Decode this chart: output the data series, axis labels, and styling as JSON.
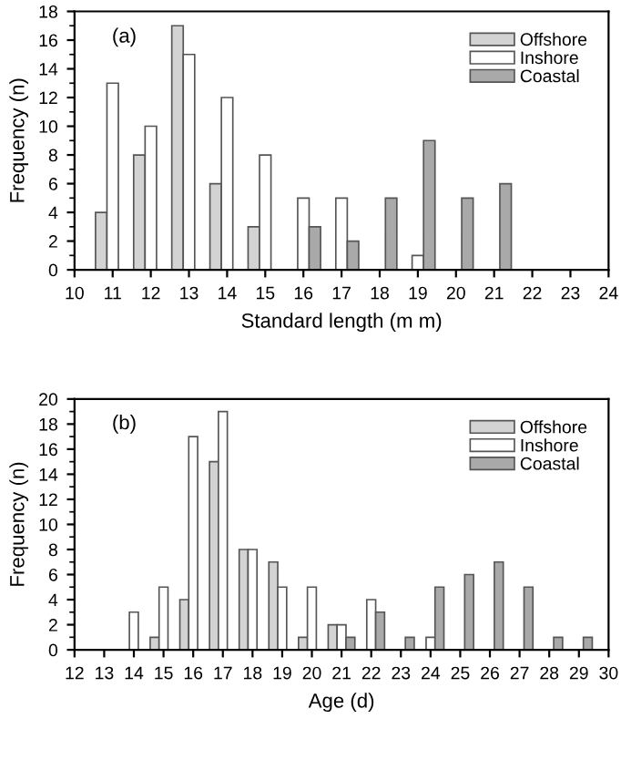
{
  "chart_data": [
    {
      "type": "bar",
      "xlabel": "Standard length (m m)",
      "ylabel": "Frequency (n)",
      "annotations": [
        "(a)"
      ],
      "legend": "top right",
      "grid": false,
      "xlim": [
        10,
        24
      ],
      "xticks": [
        10,
        11,
        12,
        13,
        14,
        15,
        16,
        17,
        18,
        19,
        20,
        21,
        22,
        23,
        24
      ],
      "ylim": [
        0,
        18
      ],
      "yticks": [
        0,
        2,
        4,
        6,
        8,
        10,
        12,
        14,
        16,
        18
      ],
      "x": [
        11,
        12,
        13,
        14,
        15,
        16,
        17,
        18,
        19,
        20,
        21
      ],
      "series": [
        {
          "name": "Offshore",
          "color": "#d3d3d3",
          "values": [
            4,
            8,
            17,
            6,
            3,
            null,
            null,
            null,
            null,
            null,
            null
          ]
        },
        {
          "name": "Inshore",
          "color": "#ffffff",
          "values": [
            13,
            10,
            15,
            12,
            8,
            5,
            5,
            null,
            1,
            null,
            null
          ]
        },
        {
          "name": "Coastal",
          "color": "#a9a9a9",
          "values": [
            null,
            null,
            null,
            null,
            null,
            3,
            2,
            5,
            9,
            5,
            6
          ]
        }
      ]
    },
    {
      "type": "bar",
      "xlabel": "Age (d)",
      "ylabel": "Frequency (n)",
      "annotations": [
        "(b)"
      ],
      "legend": "top right",
      "grid": false,
      "xlim": [
        12,
        30
      ],
      "xticks": [
        12,
        13,
        14,
        15,
        16,
        17,
        18,
        19,
        20,
        21,
        22,
        23,
        24,
        25,
        26,
        27,
        28,
        29,
        30
      ],
      "ylim": [
        0,
        20
      ],
      "yticks": [
        0,
        2,
        4,
        6,
        8,
        10,
        12,
        14,
        16,
        18,
        20
      ],
      "x": [
        14,
        15,
        16,
        17,
        18,
        19,
        20,
        21,
        22,
        23,
        24,
        25,
        26,
        27,
        28,
        29
      ],
      "series": [
        {
          "name": "Offshore",
          "color": "#d3d3d3",
          "values": [
            null,
            1,
            4,
            15,
            8,
            7,
            1,
            2,
            null,
            null,
            null,
            null,
            null,
            null,
            null,
            null
          ]
        },
        {
          "name": "Inshore",
          "color": "#ffffff",
          "values": [
            3,
            5,
            17,
            19,
            8,
            5,
            5,
            2,
            4,
            null,
            1,
            null,
            null,
            null,
            null,
            null
          ]
        },
        {
          "name": "Coastal",
          "color": "#a9a9a9",
          "values": [
            null,
            null,
            null,
            null,
            null,
            null,
            null,
            1,
            3,
            1,
            5,
            6,
            7,
            5,
            1,
            1
          ]
        }
      ]
    }
  ]
}
